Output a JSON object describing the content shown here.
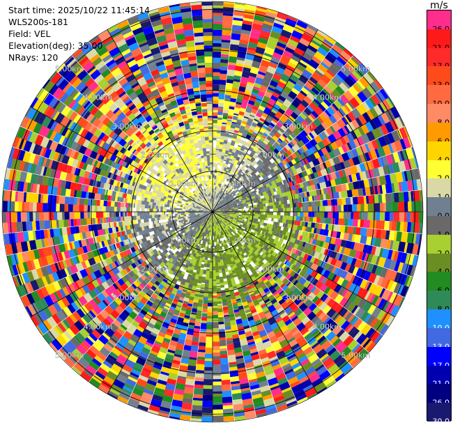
{
  "info": {
    "start_time": "Start time: 2025/10/22 11:45:14",
    "instrument": "WLS200s-181",
    "field": "Field: VEL",
    "elevation": "Elevation(deg): 35.00",
    "nrays": "NRays: 120"
  },
  "colorbar": {
    "unit": "m/s",
    "levels": [
      {
        "label": "26.0",
        "color": "#ff2d8c"
      },
      {
        "label": "21.0",
        "color": "#ff1a1a"
      },
      {
        "label": "17.0",
        "color": "#ff2a2a"
      },
      {
        "label": "13.0",
        "color": "#ff4a1c"
      },
      {
        "label": "10.0",
        "color": "#ff6a40"
      },
      {
        "label": "8.0",
        "color": "#ff8a66"
      },
      {
        "label": "6.0",
        "color": "#ff9a00"
      },
      {
        "label": "4.0",
        "color": "#ffd500"
      },
      {
        "label": "2.0",
        "color": "#ffff33"
      },
      {
        "label": "1.0",
        "color": "#d9d9a6"
      },
      {
        "label": "0.0",
        "color": "#708090"
      },
      {
        "label": "-1.0",
        "color": "#696969"
      },
      {
        "label": "-2.0",
        "color": "#a8d030"
      },
      {
        "label": "-4.0",
        "color": "#6b8e23"
      },
      {
        "label": "-6.0",
        "color": "#228b22"
      },
      {
        "label": "-8.0",
        "color": "#2e8b57"
      },
      {
        "label": "-10.0",
        "color": "#1e90ff"
      },
      {
        "label": "-13.0",
        "color": "#4169e1"
      },
      {
        "label": "-17.0",
        "color": "#0000ff"
      },
      {
        "label": "-21.0",
        "color": "#0000b0"
      },
      {
        "label": "-26.0",
        "color": "#000080"
      },
      {
        "label": "-30.0",
        "color": "#191970"
      }
    ]
  },
  "chart_data": {
    "type": "heatmap",
    "subtype": "ppi-polar",
    "field": "VEL",
    "units": "m/s",
    "rays": 120,
    "range_rings_km": [
      1.0,
      2.0,
      3.0,
      4.0,
      5.0
    ],
    "ring_labels": [
      "1.00km",
      "2.00km",
      "3.00km",
      "4.00km",
      "5.00km"
    ],
    "max_range_km": 5.2,
    "value_range": [
      -30.0,
      30.0
    ],
    "colorbar_placement": "right"
  }
}
